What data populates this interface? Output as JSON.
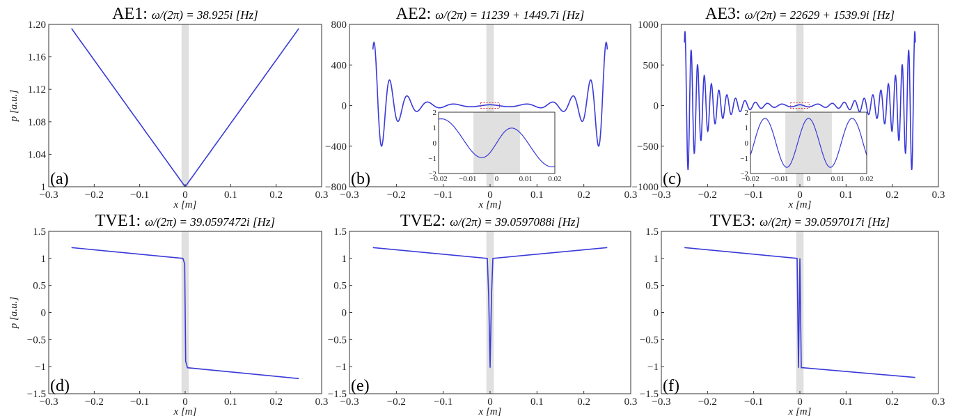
{
  "figure": {
    "colors": {
      "curve": "#3a3ad8",
      "shade": "#e0e0e0",
      "axis": "#333333",
      "inset_box": "#e04040"
    }
  },
  "chart_data": [
    {
      "type": "line",
      "panel_label": "(a)",
      "title_prefix": "AE1",
      "title_formula": "ω/(2π) = 38.925i [Hz]",
      "xlabel": "x [m]",
      "ylabel": "p [a.u.]",
      "xlim": [
        -0.3,
        0.3
      ],
      "ylim": [
        1.0,
        1.2
      ],
      "xticks": [
        "−0.3",
        "−0.2",
        "−0.1",
        "0",
        "0.1",
        "0.2",
        "0.3"
      ],
      "yticks": [
        "1",
        "1.04",
        "1.08",
        "1.12",
        "1.16",
        "1.20"
      ],
      "ytick_values": [
        1.0,
        1.04,
        1.08,
        1.12,
        1.16,
        1.2
      ],
      "shaded_x": [
        -0.008,
        0.008
      ],
      "series": [
        {
          "kind": "vshape",
          "x_end": 0.25,
          "y_min": 1.0,
          "y_end": 1.195
        }
      ]
    },
    {
      "type": "line",
      "panel_label": "(b)",
      "title_prefix": "AE2",
      "title_formula": "ω/(2π) = 11239 + 1449.7i [Hz]",
      "xlabel": "x [m]",
      "ylabel": "",
      "xlim": [
        -0.3,
        0.3
      ],
      "ylim": [
        -800,
        800
      ],
      "xticks": [
        "−0.3",
        "−0.2",
        "−0.1",
        "0",
        "0.1",
        "0.2",
        "0.3"
      ],
      "yticks": [
        "−800",
        "−400",
        "0",
        "400",
        "800"
      ],
      "ytick_values": [
        -800,
        -400,
        0,
        400,
        800
      ],
      "shaded_x": [
        -0.008,
        0.008
      ],
      "series": [
        {
          "kind": "osc",
          "x_end": 0.25,
          "cycles": 5,
          "amp": 660,
          "decay": 28
        }
      ],
      "inset": {
        "xlim": [
          -0.02,
          0.02
        ],
        "ylim": [
          -2,
          2
        ],
        "xticks": [
          "−0.02",
          "−0.01",
          "0",
          "0.01",
          "0.02"
        ],
        "yticks": [
          "−2",
          "−1",
          "0",
          "1",
          "2"
        ],
        "ytick_values": [
          -2,
          -1,
          0,
          1,
          2
        ]
      }
    },
    {
      "type": "line",
      "panel_label": "(c)",
      "title_prefix": "AE3",
      "title_formula": "ω/(2π) = 22629 + 1539.9i [Hz]",
      "xlabel": "x [m]",
      "ylabel": "",
      "xlim": [
        -0.3,
        0.3
      ],
      "ylim": [
        -1000,
        1000
      ],
      "xticks": [
        "−0.3",
        "−0.2",
        "−0.1",
        "0",
        "0.1",
        "0.2",
        "0.3"
      ],
      "yticks": [
        "−1000",
        "−500",
        "0",
        "500",
        "1000"
      ],
      "ytick_values": [
        -1000,
        -500,
        0,
        500,
        1000
      ],
      "shaded_x": [
        -0.008,
        0.008
      ],
      "series": [
        {
          "kind": "osc",
          "x_end": 0.25,
          "cycles": 12,
          "amp": 930,
          "decay": 22
        }
      ],
      "inset": {
        "xlim": [
          -0.02,
          0.02
        ],
        "ylim": [
          -2,
          2
        ],
        "xticks": [
          "−0.02",
          "−0.01",
          "0",
          "0.01",
          "0.02"
        ],
        "yticks": [
          "−2",
          "−1",
          "0",
          "1",
          "2"
        ],
        "ytick_values": [
          -2,
          -1,
          0,
          1,
          2
        ]
      }
    },
    {
      "type": "line",
      "panel_label": "(d)",
      "title_prefix": "TVE1",
      "title_formula": "ω/(2π) = 39.0597472i [Hz]",
      "xlabel": "x [m]",
      "ylabel": "p [a.u.]",
      "xlim": [
        -0.3,
        0.3
      ],
      "ylim": [
        -1.5,
        1.5
      ],
      "xticks": [
        "−0.3",
        "−0.2",
        "−0.1",
        "0",
        "0.1",
        "0.2",
        "0.3"
      ],
      "yticks": [
        "−1.5",
        "−1",
        "−0.5",
        "0",
        "0.5",
        "1",
        "1.5"
      ],
      "ytick_values": [
        -1.5,
        -1,
        -0.5,
        0,
        0.5,
        1,
        1.5
      ],
      "shaded_x": [
        -0.008,
        0.008
      ],
      "series": [
        {
          "kind": "poly",
          "x": [
            -0.25,
            -0.005,
            -0.001,
            0.0,
            0.001,
            0.005,
            0.25
          ],
          "y": [
            1.2,
            1.0,
            0.9,
            0.0,
            -0.9,
            -1.02,
            -1.22
          ]
        }
      ]
    },
    {
      "type": "line",
      "panel_label": "(e)",
      "title_prefix": "TVE2",
      "title_formula": "ω/(2π) = 39.0597088i [Hz]",
      "xlabel": "x [m]",
      "ylabel": "",
      "xlim": [
        -0.3,
        0.3
      ],
      "ylim": [
        -1.5,
        1.5
      ],
      "xticks": [
        "−0.3",
        "−0.2",
        "−0.1",
        "0",
        "0.1",
        "0.2",
        "0.3"
      ],
      "yticks": [
        "−1.5",
        "−1",
        "−0.5",
        "0",
        "0.5",
        "1",
        "1.5"
      ],
      "ytick_values": [
        -1.5,
        -1,
        -0.5,
        0,
        0.5,
        1,
        1.5
      ],
      "shaded_x": [
        -0.008,
        0.008
      ],
      "series": [
        {
          "kind": "poly",
          "x": [
            -0.25,
            -0.006,
            -0.003,
            0.0,
            0.003,
            0.006,
            0.25
          ],
          "y": [
            1.2,
            1.0,
            0.3,
            -1.02,
            0.3,
            1.0,
            1.2
          ]
        }
      ]
    },
    {
      "type": "line",
      "panel_label": "(f)",
      "title_prefix": "TVE3",
      "title_formula": "ω/(2π) = 39.0597017i [Hz]",
      "xlabel": "x [m]",
      "ylabel": "",
      "xlim": [
        -0.3,
        0.3
      ],
      "ylim": [
        -1.5,
        1.5
      ],
      "xticks": [
        "−0.3",
        "−0.2",
        "−0.1",
        "0",
        "0.1",
        "0.2",
        "0.3"
      ],
      "yticks": [
        "−1.5",
        "−1",
        "−0.5",
        "0",
        "0.5",
        "1",
        "1.5"
      ],
      "ytick_values": [
        -1.5,
        -1,
        -0.5,
        0,
        0.5,
        1,
        1.5
      ],
      "shaded_x": [
        -0.008,
        0.008
      ],
      "series": [
        {
          "kind": "poly",
          "x": [
            -0.25,
            -0.006,
            -0.003,
            0.0,
            0.003,
            0.006,
            0.25
          ],
          "y": [
            1.2,
            1.0,
            -1.02,
            1.0,
            -1.02,
            -1.02,
            -1.2
          ]
        }
      ]
    }
  ]
}
